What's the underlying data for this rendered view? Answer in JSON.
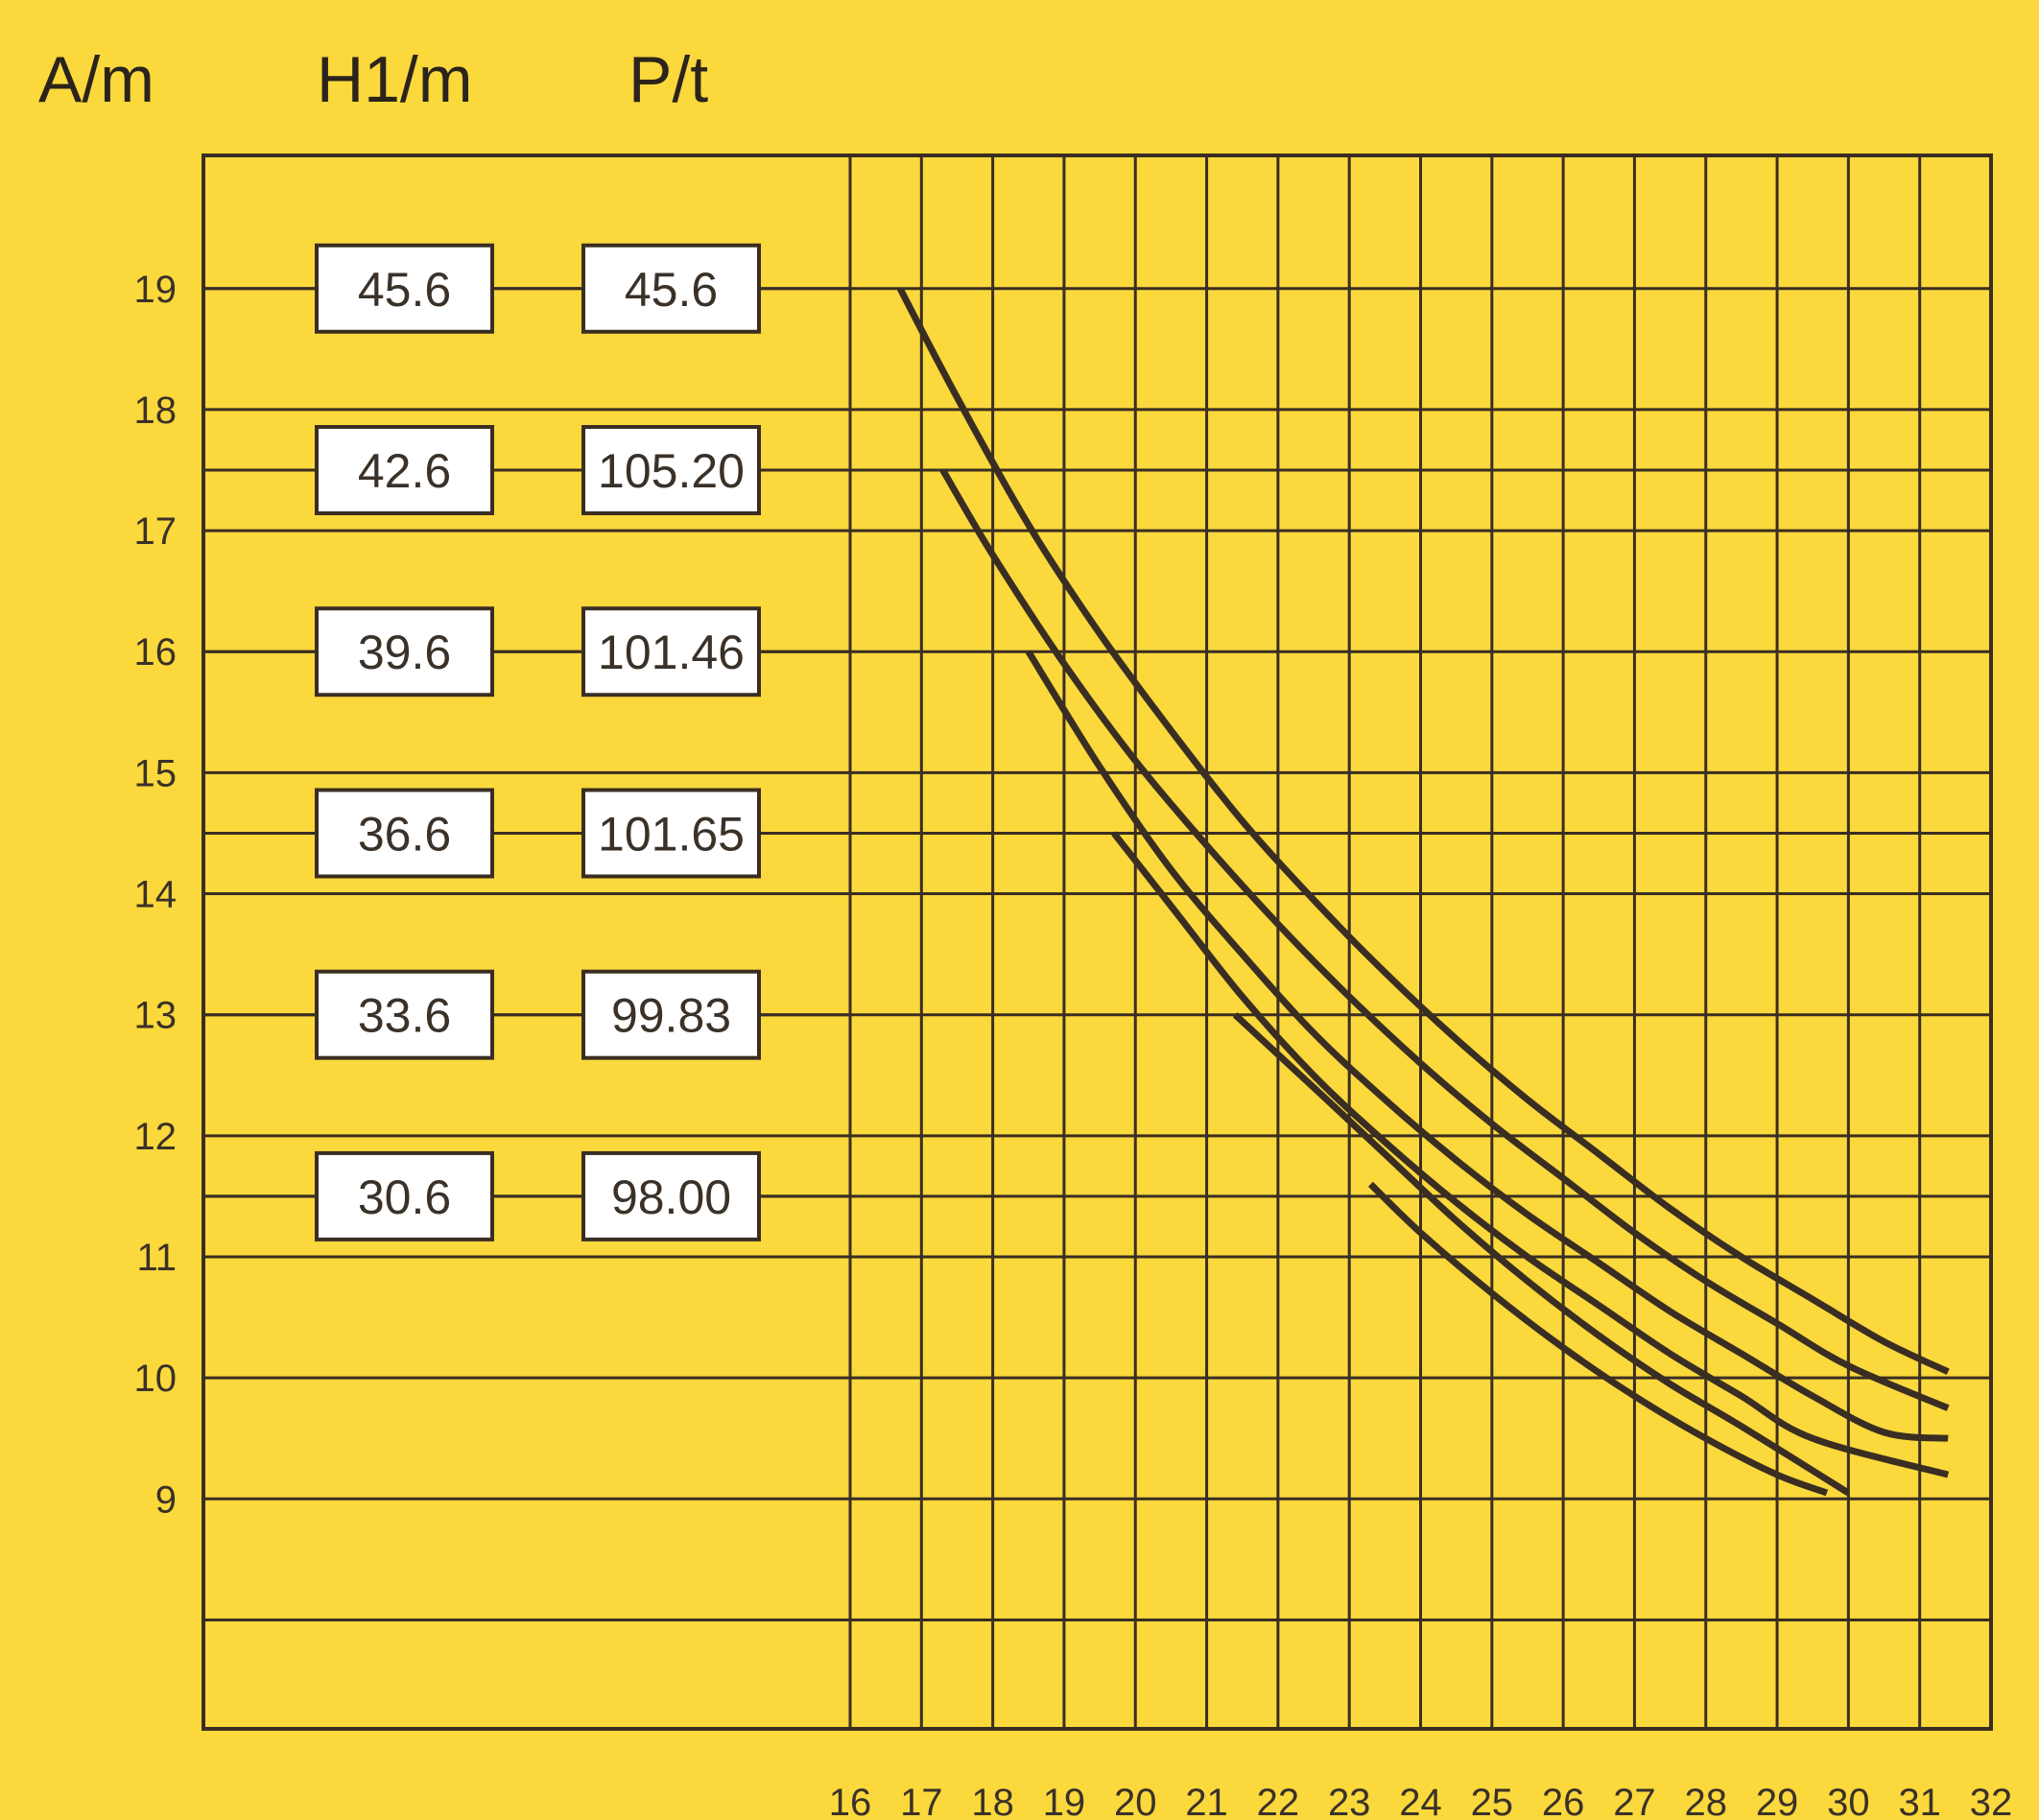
{
  "chart_data": {
    "type": "line",
    "title": "",
    "headers": {
      "a": "A/m",
      "h1": "H1/m",
      "p": "P/t"
    },
    "xlim": [
      16,
      32
    ],
    "ylim": [
      7.1,
      20.1
    ],
    "x_ticks": [
      "16",
      "17",
      "18",
      "19",
      "20",
      "21",
      "22",
      "23",
      "24",
      "25",
      "26",
      "27",
      "28",
      "29",
      "30",
      "31",
      "32"
    ],
    "y_ticks": [
      {
        "value": 19,
        "label": "19"
      },
      {
        "value": 18,
        "label": "18"
      },
      {
        "value": 17,
        "label": "17"
      },
      {
        "value": 16,
        "label": "16"
      },
      {
        "value": 15,
        "label": "15"
      },
      {
        "value": 14,
        "label": "14"
      },
      {
        "value": 13,
        "label": "13"
      },
      {
        "value": 12,
        "label": "12"
      },
      {
        "value": 11,
        "label": "11"
      },
      {
        "value": 10,
        "label": "10"
      },
      {
        "value": 9,
        "label": "9"
      }
    ],
    "extra_gridlines_y": [
      17.5,
      14.5,
      11.5,
      8.0
    ],
    "grid": true,
    "rows": [
      {
        "y": 19.0,
        "h1": "45.6",
        "p": "45.6"
      },
      {
        "y": 17.5,
        "h1": "42.6",
        "p": "105.20"
      },
      {
        "y": 16.0,
        "h1": "39.6",
        "p": "101.46"
      },
      {
        "y": 14.5,
        "h1": "36.6",
        "p": "101.65"
      },
      {
        "y": 13.0,
        "h1": "33.6",
        "p": "99.83"
      },
      {
        "y": 11.5,
        "h1": "30.6",
        "p": "98.00"
      }
    ],
    "series": [
      {
        "points": [
          [
            16.7,
            19.0
          ],
          [
            17.5,
            18.1
          ],
          [
            18.5,
            17.05
          ],
          [
            19.5,
            16.15
          ],
          [
            20.5,
            15.35
          ],
          [
            21.5,
            14.6
          ],
          [
            22.5,
            13.95
          ],
          [
            23.5,
            13.35
          ],
          [
            24.5,
            12.8
          ],
          [
            25.5,
            12.3
          ],
          [
            26.5,
            11.85
          ],
          [
            27.5,
            11.4
          ],
          [
            28.5,
            11.0
          ],
          [
            29.5,
            10.65
          ],
          [
            30.5,
            10.3
          ],
          [
            31.4,
            10.05
          ]
        ]
      },
      {
        "points": [
          [
            17.3,
            17.5
          ],
          [
            18.0,
            16.8
          ],
          [
            19.0,
            15.9
          ],
          [
            20.0,
            15.1
          ],
          [
            21.0,
            14.4
          ],
          [
            22.0,
            13.75
          ],
          [
            23.0,
            13.15
          ],
          [
            24.0,
            12.6
          ],
          [
            25.0,
            12.1
          ],
          [
            26.0,
            11.65
          ],
          [
            27.0,
            11.2
          ],
          [
            28.0,
            10.8
          ],
          [
            29.0,
            10.45
          ],
          [
            30.0,
            10.1
          ],
          [
            31.4,
            9.75
          ]
        ]
      },
      {
        "points": [
          [
            18.5,
            16.0
          ],
          [
            19.5,
            15.05
          ],
          [
            20.5,
            14.2
          ],
          [
            21.5,
            13.5
          ],
          [
            22.5,
            12.85
          ],
          [
            23.5,
            12.3
          ],
          [
            24.5,
            11.8
          ],
          [
            25.5,
            11.35
          ],
          [
            26.5,
            10.95
          ],
          [
            27.5,
            10.55
          ],
          [
            28.5,
            10.2
          ],
          [
            29.5,
            9.85
          ],
          [
            30.5,
            9.55
          ],
          [
            31.4,
            9.5
          ]
        ]
      },
      {
        "points": [
          [
            19.7,
            14.5
          ],
          [
            20.5,
            13.9
          ],
          [
            21.5,
            13.15
          ],
          [
            22.5,
            12.5
          ],
          [
            23.5,
            11.95
          ],
          [
            24.5,
            11.45
          ],
          [
            25.5,
            11.0
          ],
          [
            26.5,
            10.6
          ],
          [
            27.5,
            10.2
          ],
          [
            28.5,
            9.85
          ],
          [
            29.5,
            9.5
          ],
          [
            31.4,
            9.2
          ]
        ]
      },
      {
        "points": [
          [
            21.4,
            13.0
          ],
          [
            22.5,
            12.4
          ],
          [
            23.5,
            11.85
          ],
          [
            24.5,
            11.3
          ],
          [
            25.5,
            10.8
          ],
          [
            26.5,
            10.35
          ],
          [
            27.5,
            9.95
          ],
          [
            28.5,
            9.6
          ],
          [
            30.0,
            9.05
          ]
        ]
      },
      {
        "points": [
          [
            23.3,
            11.6
          ],
          [
            24.0,
            11.2
          ],
          [
            25.0,
            10.7
          ],
          [
            26.0,
            10.25
          ],
          [
            27.0,
            9.85
          ],
          [
            28.0,
            9.5
          ],
          [
            29.0,
            9.2
          ],
          [
            29.7,
            9.05
          ]
        ]
      }
    ]
  }
}
